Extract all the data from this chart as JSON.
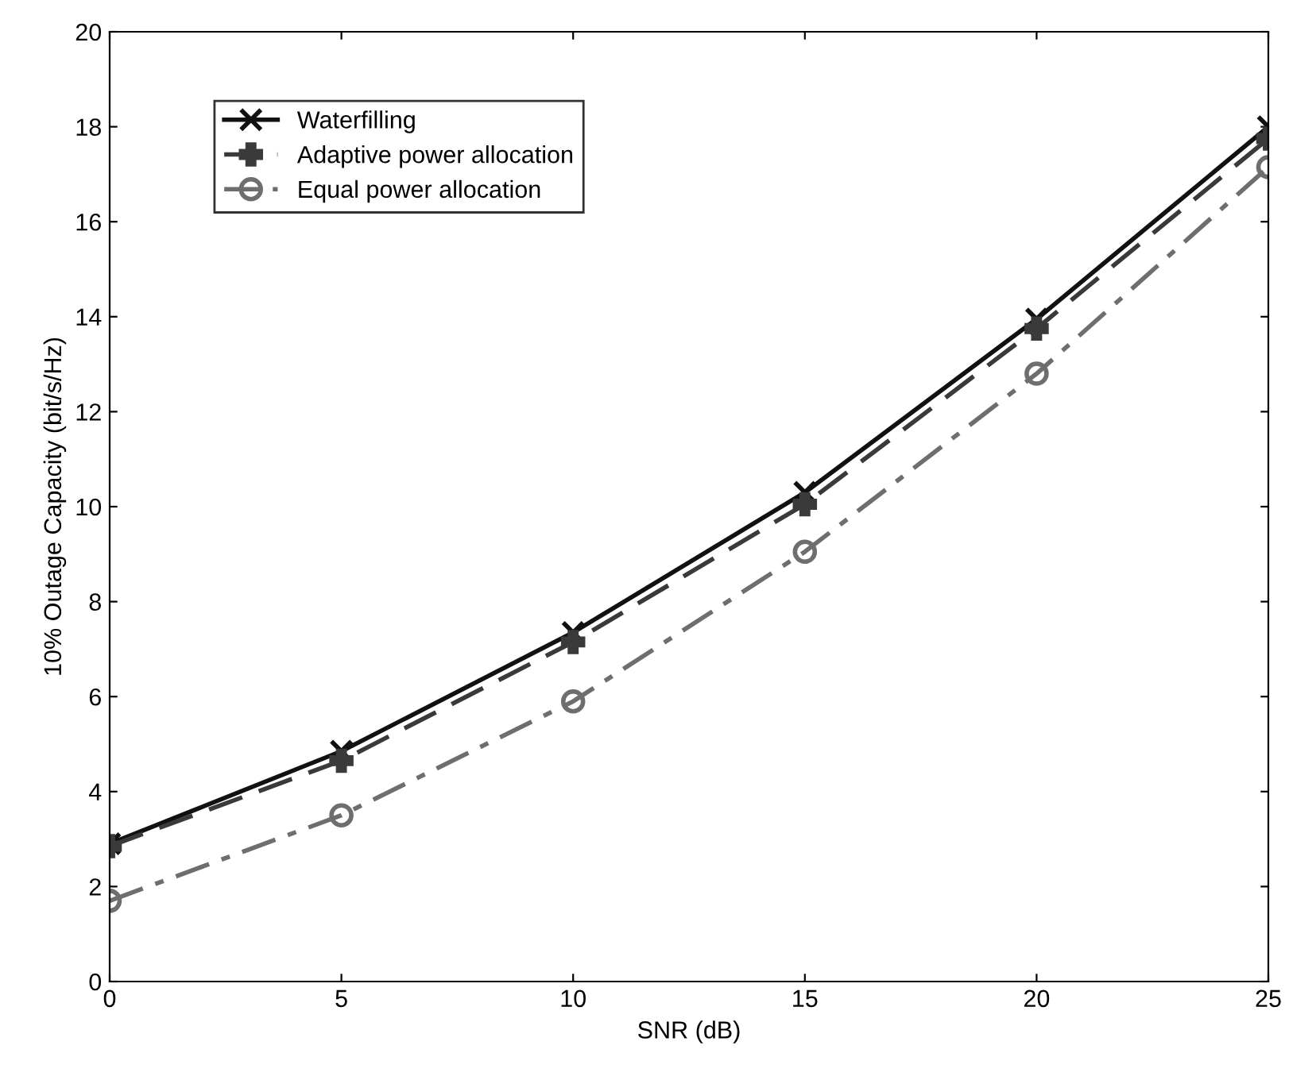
{
  "chart_data": {
    "type": "line",
    "xlabel": "SNR (dB)",
    "ylabel": "10% Outage Capacity (bit/s/Hz)",
    "x": [
      0,
      5,
      10,
      15,
      20,
      25
    ],
    "series": [
      {
        "name": "Waterfilling",
        "color": "#111111",
        "marker": "cross",
        "line_style": "solid",
        "values": [
          2.9,
          4.85,
          7.35,
          10.3,
          13.95,
          18.0
        ]
      },
      {
        "name": "Adaptive power allocation",
        "color": "#3a3a3a",
        "marker": "plus",
        "line_style": "dashed",
        "values": [
          2.85,
          4.65,
          7.15,
          10.05,
          13.75,
          17.75
        ]
      },
      {
        "name": "Equal power allocation",
        "color": "#6e6e6e",
        "marker": "circle",
        "line_style": "dashdot",
        "values": [
          1.7,
          3.5,
          5.9,
          9.05,
          12.8,
          17.15
        ]
      }
    ],
    "xlim": [
      0,
      25
    ],
    "xticks": [
      0,
      5,
      10,
      15,
      20,
      25
    ],
    "ylim": [
      0,
      20
    ],
    "yticks": [
      0,
      2,
      4,
      6,
      8,
      10,
      12,
      14,
      16,
      18,
      20
    ],
    "grid": false,
    "legend": "top left"
  }
}
